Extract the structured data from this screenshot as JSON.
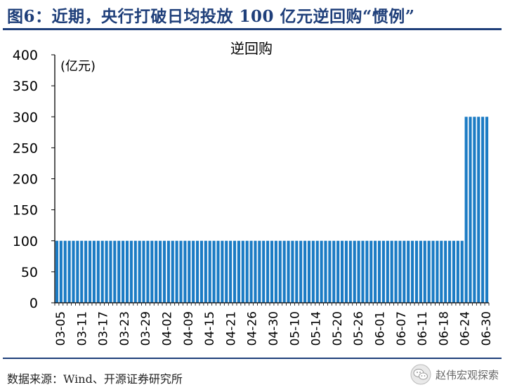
{
  "figure": {
    "title": "图6：近期，央行打破日均投放 100 亿元逆回购“惯例”",
    "source": "数据来源：Wind、开源证券研究所",
    "watermark": "赵伟宏观探索",
    "watermark_icon": "wechat-icon"
  },
  "colors": {
    "bar": "#1b7bc4",
    "axis": "#000000",
    "title": "#1f3f7a",
    "rule": "#1f3f7a"
  },
  "chart_data": {
    "type": "bar",
    "title": "逆回购",
    "xlabel": "",
    "ylabel": "",
    "unit_label": "(亿元)",
    "ylim": [
      0,
      400
    ],
    "yticks": [
      "0",
      "50",
      "100",
      "150",
      "200",
      "250",
      "300",
      "350",
      "400"
    ],
    "grid": false,
    "legend": "none",
    "x_tick_labels": [
      "03-05",
      "03-11",
      "03-17",
      "03-23",
      "03-29",
      "04-02",
      "04-09",
      "04-15",
      "04-21",
      "04-26",
      "04-30",
      "05-10",
      "05-14",
      "05-20",
      "05-26",
      "06-01",
      "06-07",
      "06-11",
      "06-18",
      "06-24",
      "06-30"
    ],
    "values": [
      100,
      100,
      100,
      100,
      100,
      100,
      100,
      100,
      100,
      100,
      100,
      100,
      100,
      100,
      100,
      100,
      100,
      100,
      100,
      100,
      100,
      100,
      100,
      100,
      100,
      100,
      100,
      100,
      100,
      100,
      100,
      100,
      100,
      100,
      100,
      100,
      100,
      100,
      100,
      100,
      100,
      100,
      100,
      100,
      100,
      100,
      100,
      100,
      100,
      100,
      100,
      100,
      100,
      100,
      100,
      100,
      100,
      100,
      100,
      100,
      100,
      100,
      100,
      100,
      100,
      100,
      100,
      100,
      100,
      100,
      100,
      100,
      100,
      100,
      100,
      100,
      100,
      100,
      100,
      100,
      100,
      100,
      100,
      100,
      100,
      100,
      100,
      100,
      100,
      100,
      100,
      100,
      100,
      100,
      100,
      100,
      100,
      100,
      100,
      300,
      300,
      300,
      300,
      300,
      300
    ]
  }
}
